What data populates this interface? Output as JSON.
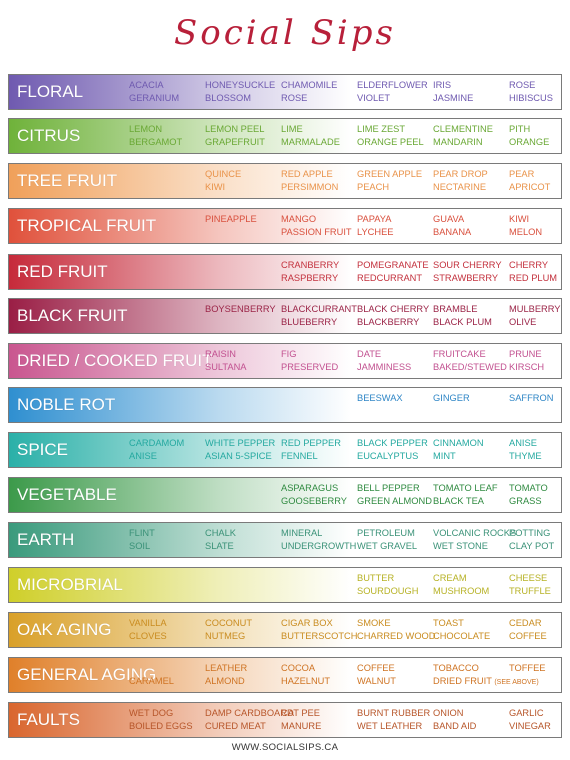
{
  "title": "Social Sips",
  "footer": "WWW.SOCIALSIPS.CA",
  "rows": [
    {
      "category": "FLORAL",
      "color": "#6f5ab0",
      "text_color": "#6f5ab0",
      "cells": [
        [
          "ACACIA",
          "GERANIUM"
        ],
        [
          "HONEYSUCKLE",
          "BLOSSOM"
        ],
        [
          "CHAMOMILE",
          "ROSE"
        ],
        [
          "ELDERFLOWER",
          "VIOLET"
        ],
        [
          "IRIS",
          "JASMINE"
        ],
        [
          "ROSE",
          "HIBISCUS"
        ]
      ]
    },
    {
      "category": "CITRUS",
      "color": "#6fb23a",
      "text_color": "#6aa835",
      "cells": [
        [
          "LEMON",
          "BERGAMOT"
        ],
        [
          "LEMON PEEL",
          "GRAPEFRUIT"
        ],
        [
          "LIME",
          "MARMALADE"
        ],
        [
          "LIME ZEST",
          "ORANGE PEEL"
        ],
        [
          "CLEMENTINE",
          "MANDARIN"
        ],
        [
          "PITH",
          "ORANGE"
        ]
      ]
    },
    {
      "category": "TREE FRUIT",
      "color": "#f0a05a",
      "text_color": "#e9934a",
      "cells": [
        [
          "",
          ""
        ],
        [
          "QUINCE",
          "KIWI"
        ],
        [
          "RED APPLE",
          "PERSIMMON"
        ],
        [
          "GREEN APPLE",
          "PEACH"
        ],
        [
          "PEAR DROP",
          "NECTARINE"
        ],
        [
          "PEAR",
          "APRICOT"
        ]
      ]
    },
    {
      "category": "TROPICAL FRUIT",
      "color": "#e0513b",
      "text_color": "#d9503e",
      "cells": [
        [
          "",
          ""
        ],
        [
          "PINEAPPLE",
          ""
        ],
        [
          "MANGO",
          "PASSION FRUIT"
        ],
        [
          "PAPAYA",
          "LYCHEE"
        ],
        [
          "GUAVA",
          "BANANA"
        ],
        [
          "KIWI",
          "MELON"
        ]
      ]
    },
    {
      "category": "RED FRUIT",
      "color": "#c62a3a",
      "text_color": "#c3313d",
      "cells": [
        [
          "",
          ""
        ],
        [
          "",
          ""
        ],
        [
          "CRANBERRY",
          "RASPBERRY"
        ],
        [
          "POMEGRANATE",
          "REDCURRANT"
        ],
        [
          "SOUR CHERRY",
          "STRAWBERRY"
        ],
        [
          "CHERRY",
          "RED PLUM"
        ]
      ]
    },
    {
      "category": "BLACK  FRUIT",
      "color": "#9a1e45",
      "text_color": "#9b2447",
      "cells": [
        [
          "",
          ""
        ],
        [
          "BOYSENBERRY",
          ""
        ],
        [
          "BLACKCURRANT",
          "BLUEBERRY"
        ],
        [
          "BLACK CHERRY",
          "BLACKBERRY"
        ],
        [
          "BRAMBLE",
          "BLACK PLUM"
        ],
        [
          "MULBERRY",
          "OLIVE"
        ]
      ]
    },
    {
      "category": "DRIED / COOKED  FRUIT",
      "color": "#c9568f",
      "text_color": "#c25190",
      "cells": [
        [
          "",
          ""
        ],
        [
          "RAISIN",
          "SULTANA"
        ],
        [
          "FIG",
          "PRESERVED"
        ],
        [
          "DATE",
          "JAMMINESS"
        ],
        [
          "FRUITCAKE",
          "BAKED/STEWED"
        ],
        [
          "PRUNE",
          "KIRSCH"
        ]
      ]
    },
    {
      "category": "NOBLE ROT",
      "color": "#2f8fd0",
      "text_color": "#2f86c6",
      "cells": [
        [
          "",
          ""
        ],
        [
          "",
          ""
        ],
        [
          "",
          ""
        ],
        [
          "BEESWAX",
          ""
        ],
        [
          "GINGER",
          ""
        ],
        [
          "SAFFRON",
          ""
        ]
      ]
    },
    {
      "category": "SPICE",
      "color": "#2ab0a8",
      "text_color": "#25a9a0",
      "cells": [
        [
          "CARDAMOM",
          "ANISE"
        ],
        [
          "WHITE PEPPER",
          "ASIAN 5-SPICE"
        ],
        [
          "RED PEPPER",
          "FENNEL"
        ],
        [
          "BLACK PEPPER",
          "EUCALYPTUS"
        ],
        [
          "CINNAMON",
          "MINT"
        ],
        [
          "ANISE",
          "THYME"
        ]
      ]
    },
    {
      "category": "VEGETABLE",
      "color": "#3c9a4a",
      "text_color": "#2f8a40",
      "cells": [
        [
          "",
          ""
        ],
        [
          "",
          ""
        ],
        [
          "ASPARAGUS",
          "GOOSEBERRY"
        ],
        [
          "BELL PEPPER",
          "GREEN ALMOND"
        ],
        [
          "TOMATO LEAF",
          "BLACK TEA"
        ],
        [
          "TOMATO",
          "GRASS"
        ]
      ]
    },
    {
      "category": "EARTH",
      "color": "#3a9a7c",
      "text_color": "#3b9278",
      "cells": [
        [
          "FLINT",
          "SOIL"
        ],
        [
          "CHALK",
          "SLATE"
        ],
        [
          "MINERAL",
          "UNDERGROWTH"
        ],
        [
          "PETROLEUM",
          "WET GRAVEL"
        ],
        [
          "VOLCANIC ROCKS",
          "WET STONE"
        ],
        [
          "POTTING",
          "CLAY POT"
        ]
      ]
    },
    {
      "category": "MICROBRIAL",
      "color": "#cfcf2a",
      "text_color": "#b7b226",
      "cells": [
        [
          "",
          ""
        ],
        [
          "",
          ""
        ],
        [
          "",
          ""
        ],
        [
          "BUTTER",
          "SOURDOUGH"
        ],
        [
          "CREAM",
          "MUSHROOM"
        ],
        [
          "CHEESE",
          "TRUFFLE"
        ]
      ]
    },
    {
      "category": "OAK AGING",
      "color": "#d9a028",
      "text_color": "#c98c20",
      "cells": [
        [
          "VANILLA",
          "CLOVES"
        ],
        [
          "COCONUT",
          "NUTMEG"
        ],
        [
          "CIGAR BOX",
          "BUTTERSCOTCH"
        ],
        [
          "SMOKE",
          "CHARRED WOOD"
        ],
        [
          "TOAST",
          "CHOCOLATE"
        ],
        [
          "CEDAR",
          "COFFEE"
        ]
      ]
    },
    {
      "category": "GENERAL  AGING",
      "color": "#e0802a",
      "text_color": "#cf7424",
      "cells": [
        [
          "",
          "CARAMEL"
        ],
        [
          "LEATHER",
          "ALMOND"
        ],
        [
          "COCOA",
          "HAZELNUT"
        ],
        [
          "COFFEE",
          "WALNUT"
        ],
        [
          "TOBACCO",
          "DRIED FRUIT"
        ],
        [
          "TOFFEE",
          ""
        ]
      ],
      "note": "(SEE ABOVE)"
    },
    {
      "category": "FAULTS",
      "color": "#d9662e",
      "text_color": "#b7562a",
      "cells": [
        [
          "WET DOG",
          "BOILED EGGS"
        ],
        [
          "DAMP CARDBOARD",
          "CURED MEAT"
        ],
        [
          "CAT PEE",
          "MANURE"
        ],
        [
          "BURNT RUBBER",
          "WET LEATHER"
        ],
        [
          "ONION",
          "BAND AID"
        ],
        [
          "GARLIC",
          "VINEGAR"
        ]
      ]
    }
  ]
}
